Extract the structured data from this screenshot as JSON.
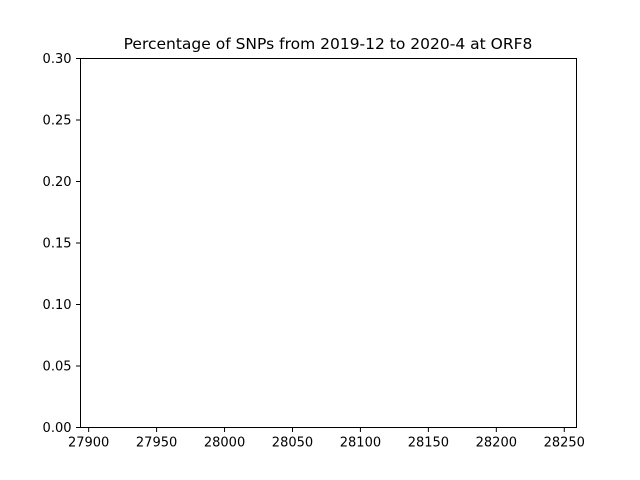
{
  "chart_data": {
    "type": "scatter",
    "title": "Percentage of SNPs from 2019-12 to 2020-4 at ORF8",
    "xlabel": "",
    "ylabel": "",
    "xlim": [
      27894,
      28259
    ],
    "ylim": [
      0,
      0.3
    ],
    "x_ticks": [
      27900,
      27950,
      28000,
      28050,
      28100,
      28150,
      28200,
      28250
    ],
    "x_tick_labels": [
      "27900",
      "27950",
      "28000",
      "28050",
      "28100",
      "28150",
      "28200",
      "28250"
    ],
    "y_ticks": [
      0,
      0.05,
      0.1,
      0.15,
      0.2,
      0.25,
      0.3
    ],
    "y_tick_labels": [
      "0.00",
      "0.05",
      "0.10",
      "0.15",
      "0.20",
      "0.25",
      "0.30"
    ],
    "grid": false,
    "legend": "none",
    "series": [
      {
        "x": [],
        "values": []
      }
    ],
    "colors": {
      "axis": "#000000",
      "background": "#ffffff"
    }
  }
}
